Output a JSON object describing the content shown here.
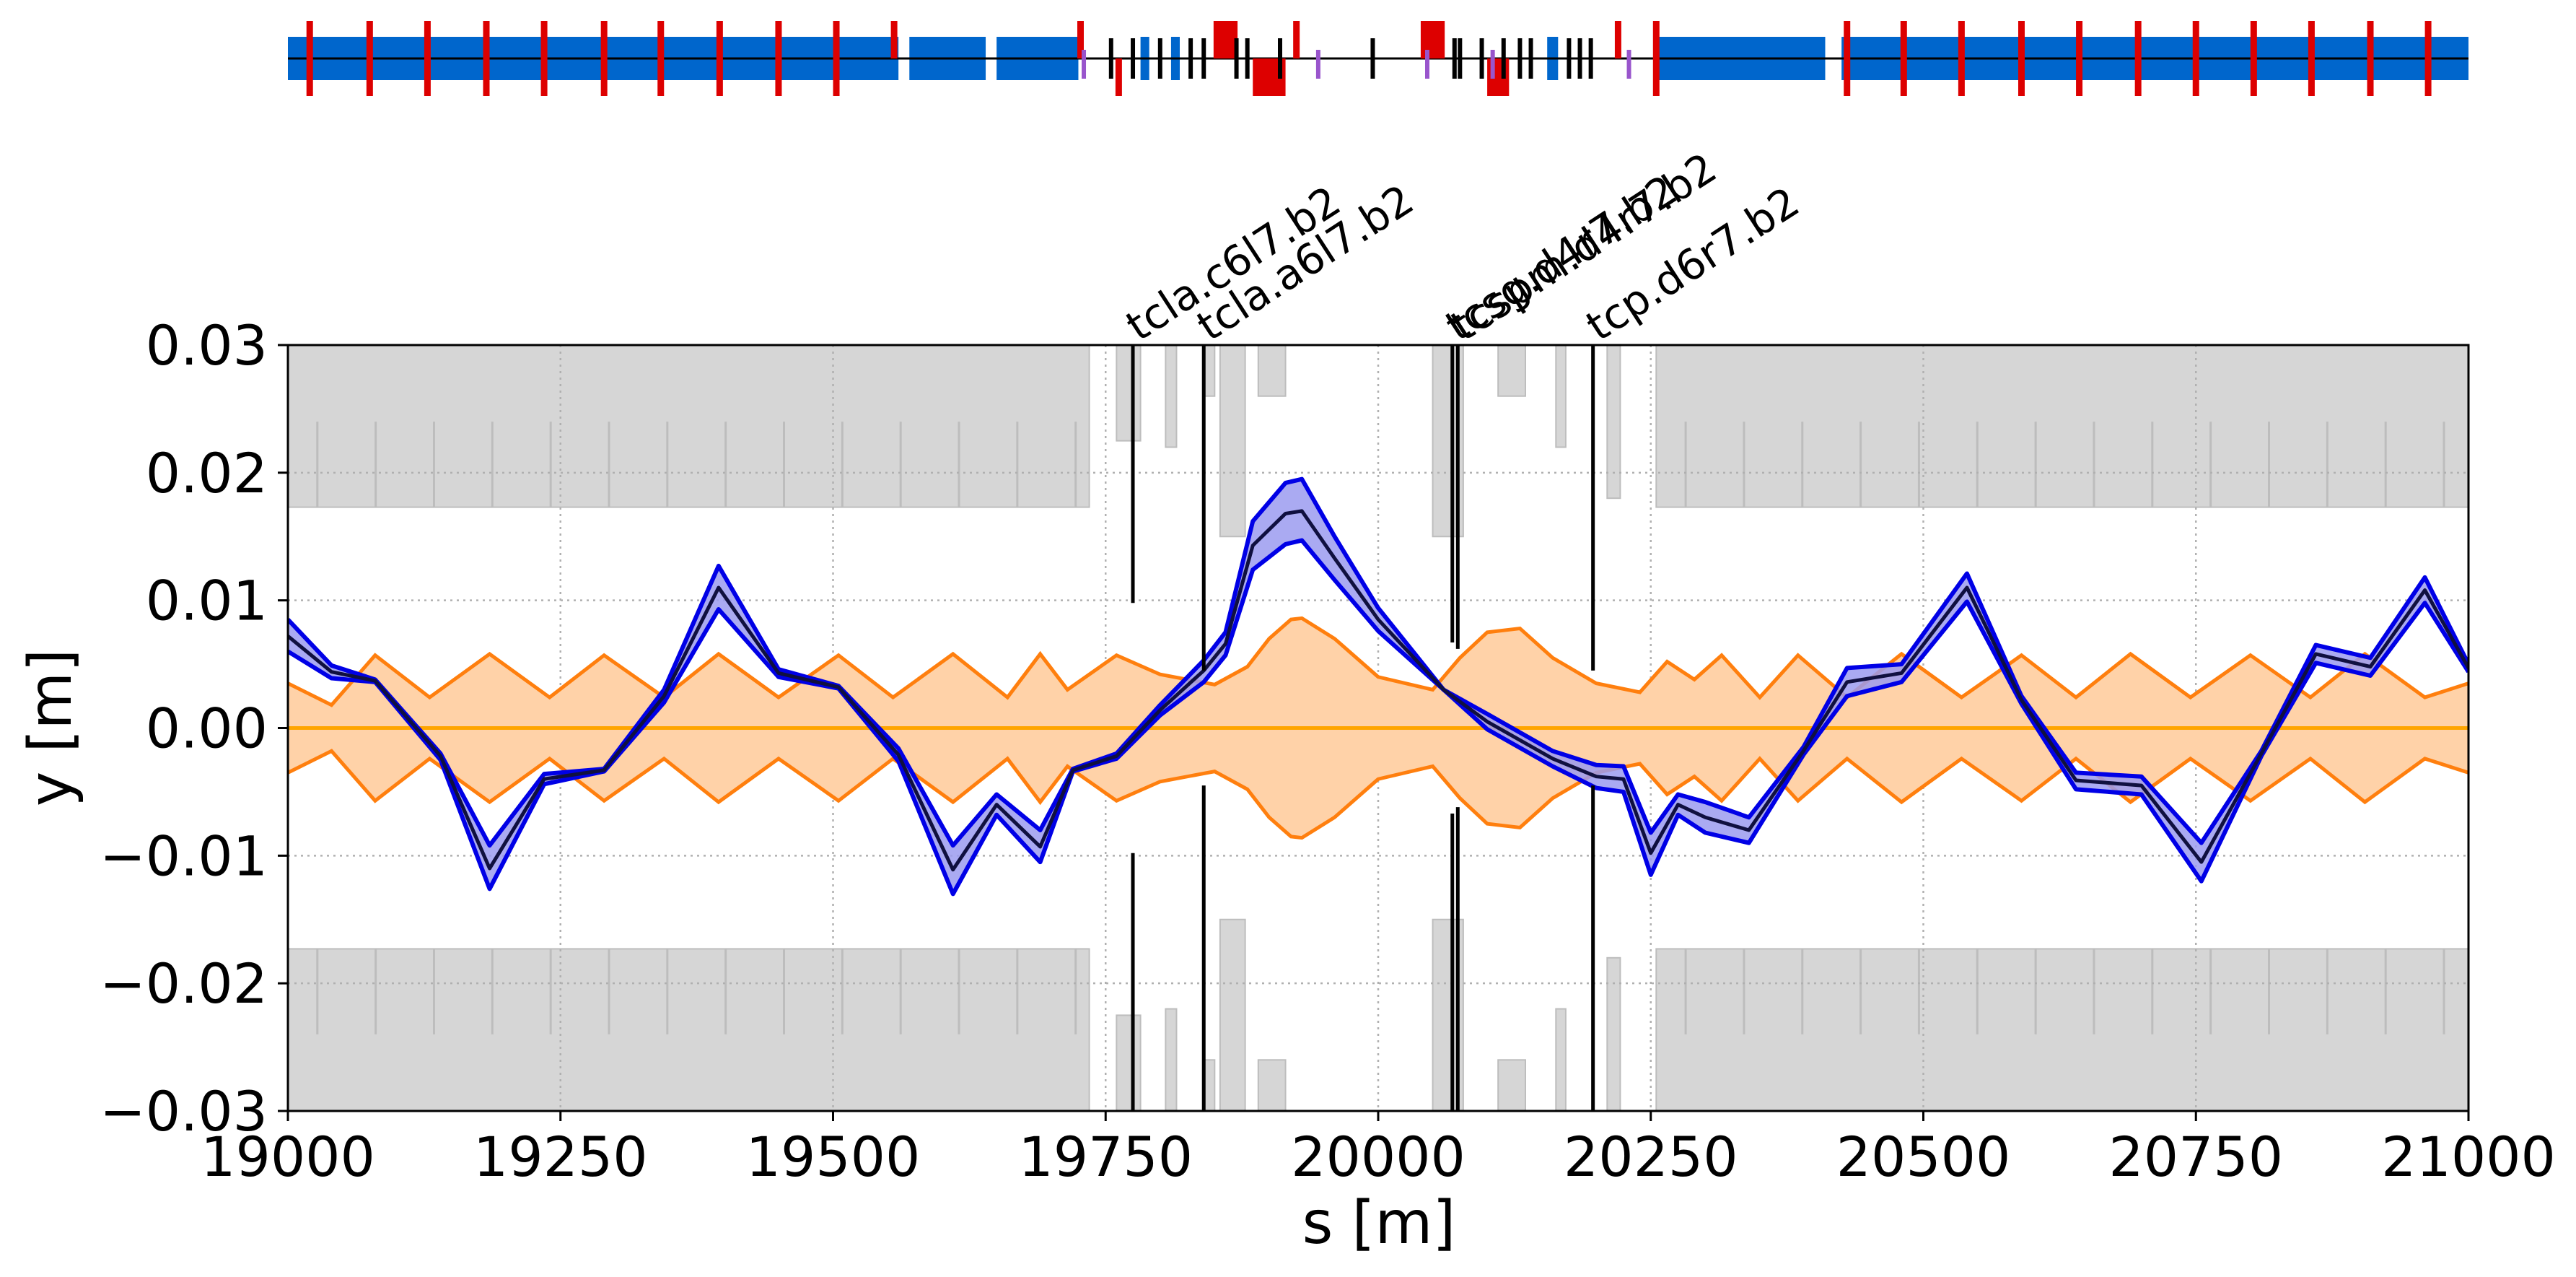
{
  "chart_data": {
    "type": "line",
    "xlabel": "s [m]",
    "ylabel": "y [m]",
    "xlim": [
      19000,
      21000
    ],
    "ylim": [
      -0.03,
      0.03
    ],
    "grid": true,
    "x_ticks": [
      {
        "value": 19000,
        "label": "19000"
      },
      {
        "value": 19250,
        "label": "19250"
      },
      {
        "value": 19500,
        "label": "19500"
      },
      {
        "value": 19750,
        "label": "19750"
      },
      {
        "value": 20000,
        "label": "20000"
      },
      {
        "value": 20250,
        "label": "20250"
      },
      {
        "value": 20500,
        "label": "20500"
      },
      {
        "value": 20750,
        "label": "20750"
      },
      {
        "value": 21000,
        "label": "21000"
      }
    ],
    "y_ticks": [
      {
        "value": 0.03,
        "label": "0.03"
      },
      {
        "value": 0.02,
        "label": "0.02"
      },
      {
        "value": 0.01,
        "label": "0.01"
      },
      {
        "value": 0.0,
        "label": "0.00"
      },
      {
        "value": -0.01,
        "label": "−0.01"
      },
      {
        "value": -0.02,
        "label": "−0.02"
      },
      {
        "value": -0.03,
        "label": "−0.03"
      }
    ],
    "colors": {
      "orbit": "#0000e6",
      "orbit_fill": "#9b9bf0",
      "beam_envelope": "#ff7f0e",
      "beam_fill": "#ffd2a8",
      "closed_orbit": "#ffa500",
      "aperture": "#d6d6d6",
      "aperture_edge": "#bdbdbd",
      "dipole": "#0066cc",
      "quadrupole": "#dd0000",
      "collimator": "#000000",
      "corrector": "#9955cc"
    },
    "series": [
      {
        "role": "orbit-upper",
        "x": [
          19000,
          19040,
          19080,
          19140,
          19185,
          19235,
          19290,
          19345,
          19395,
          19450,
          19505,
          19560,
          19610,
          19650,
          19690,
          19720,
          19760,
          19800,
          19840,
          19860,
          19885,
          19915,
          19930,
          19960,
          20000,
          20060,
          20100,
          20160,
          20200,
          20225,
          20250,
          20275,
          20300,
          20340,
          20390,
          20430,
          20480,
          20540,
          20590,
          20640,
          20700,
          20755,
          20810,
          20860,
          20910,
          20960,
          21000
        ],
        "y": [
          0.0085,
          0.0049,
          0.0038,
          -0.002,
          -0.0092,
          -0.0036,
          -0.0032,
          0.003,
          0.0127,
          0.0046,
          0.0033,
          -0.0016,
          -0.0092,
          -0.0052,
          -0.008,
          -0.0032,
          -0.002,
          0.0018,
          0.0053,
          0.0075,
          0.0162,
          0.0192,
          0.0195,
          0.015,
          0.0094,
          0.003,
          0.0011,
          -0.0018,
          -0.0029,
          -0.003,
          -0.0082,
          -0.0052,
          -0.0058,
          -0.007,
          -0.0015,
          0.0047,
          0.005,
          0.0121,
          0.0025,
          -0.0035,
          -0.0038,
          -0.009,
          -0.0018,
          0.0065,
          0.0055,
          0.0118,
          0.005
        ]
      },
      {
        "role": "orbit-center",
        "x": [
          19000,
          19040,
          19080,
          19140,
          19185,
          19235,
          19290,
          19345,
          19395,
          19450,
          19505,
          19560,
          19610,
          19650,
          19690,
          19720,
          19760,
          19800,
          19840,
          19860,
          19885,
          19915,
          19930,
          19960,
          20000,
          20060,
          20100,
          20160,
          20200,
          20225,
          20250,
          20275,
          20300,
          20340,
          20390,
          20430,
          20480,
          20540,
          20590,
          20640,
          20700,
          20755,
          20810,
          20860,
          20910,
          20960,
          21000
        ],
        "y": [
          0.0072,
          0.0044,
          0.0037,
          -0.0022,
          -0.011,
          -0.004,
          -0.0033,
          0.0025,
          0.011,
          0.0043,
          0.0032,
          -0.0021,
          -0.0111,
          -0.006,
          -0.0093,
          -0.0033,
          -0.0022,
          0.0014,
          0.0045,
          0.0066,
          0.0143,
          0.0168,
          0.017,
          0.0133,
          0.0085,
          0.003,
          0.0005,
          -0.0024,
          -0.0038,
          -0.004,
          -0.0098,
          -0.006,
          -0.007,
          -0.008,
          -0.0018,
          0.0036,
          0.0043,
          0.011,
          0.0022,
          -0.0041,
          -0.0045,
          -0.0105,
          -0.002,
          0.0058,
          0.0048,
          0.0108,
          0.0047
        ]
      },
      {
        "role": "orbit-lower",
        "x": [
          19000,
          19040,
          19080,
          19140,
          19185,
          19235,
          19290,
          19345,
          19395,
          19450,
          19505,
          19560,
          19610,
          19650,
          19690,
          19720,
          19760,
          19800,
          19840,
          19860,
          19885,
          19915,
          19930,
          19960,
          20000,
          20060,
          20100,
          20160,
          20200,
          20225,
          20250,
          20275,
          20300,
          20340,
          20390,
          20430,
          20480,
          20540,
          20590,
          20640,
          20700,
          20755,
          20810,
          20860,
          20910,
          20960,
          21000
        ],
        "y": [
          0.006,
          0.0039,
          0.0036,
          -0.0025,
          -0.0126,
          -0.0044,
          -0.0034,
          0.002,
          0.0093,
          0.004,
          0.0031,
          -0.0026,
          -0.013,
          -0.0068,
          -0.0105,
          -0.0034,
          -0.0024,
          0.001,
          0.0036,
          0.0057,
          0.0124,
          0.0144,
          0.0147,
          0.0116,
          0.0076,
          0.003,
          -0.0001,
          -0.003,
          -0.0047,
          -0.005,
          -0.0115,
          -0.0068,
          -0.0082,
          -0.009,
          -0.0021,
          0.0025,
          0.0036,
          0.0099,
          0.0019,
          -0.0048,
          -0.0052,
          -0.012,
          -0.0022,
          0.0051,
          0.0041,
          0.0098,
          0.0044
        ]
      },
      {
        "role": "beam-envelope-upper",
        "x": [
          19000,
          19040,
          19080,
          19130,
          19185,
          19240,
          19290,
          19345,
          19395,
          19450,
          19505,
          19555,
          19610,
          19660,
          19690,
          19715,
          19760,
          19800,
          19850,
          19880,
          19900,
          19920,
          19930,
          19960,
          20000,
          20050,
          20075,
          20100,
          20130,
          20160,
          20200,
          20240,
          20265,
          20290,
          20315,
          20350,
          20385,
          20430,
          20480,
          20535,
          20590,
          20640,
          20690,
          20745,
          20800,
          20855,
          20905,
          20960,
          21000
        ],
        "y": [
          0.0035,
          0.0018,
          0.0057,
          0.0024,
          0.0058,
          0.0024,
          0.0057,
          0.0024,
          0.0058,
          0.0024,
          0.0057,
          0.0024,
          0.0058,
          0.0024,
          0.0058,
          0.003,
          0.0057,
          0.0042,
          0.0034,
          0.0048,
          0.007,
          0.0085,
          0.0086,
          0.007,
          0.004,
          0.003,
          0.0055,
          0.0075,
          0.0078,
          0.0055,
          0.0035,
          0.0028,
          0.0052,
          0.0038,
          0.0057,
          0.0024,
          0.0057,
          0.0024,
          0.0058,
          0.0024,
          0.0057,
          0.0024,
          0.0058,
          0.0024,
          0.0057,
          0.0024,
          0.0058,
          0.0024,
          0.0035
        ]
      },
      {
        "role": "beam-envelope-lower",
        "x": [
          19000,
          19040,
          19080,
          19130,
          19185,
          19240,
          19290,
          19345,
          19395,
          19450,
          19505,
          19555,
          19610,
          19660,
          19690,
          19715,
          19760,
          19800,
          19850,
          19880,
          19900,
          19920,
          19930,
          19960,
          20000,
          20050,
          20075,
          20100,
          20130,
          20160,
          20200,
          20240,
          20265,
          20290,
          20315,
          20350,
          20385,
          20430,
          20480,
          20535,
          20590,
          20640,
          20690,
          20745,
          20800,
          20855,
          20905,
          20960,
          21000
        ],
        "y": [
          -0.0035,
          -0.0018,
          -0.0057,
          -0.0024,
          -0.0058,
          -0.0024,
          -0.0057,
          -0.0024,
          -0.0058,
          -0.0024,
          -0.0057,
          -0.0024,
          -0.0058,
          -0.0024,
          -0.0058,
          -0.003,
          -0.0057,
          -0.0042,
          -0.0034,
          -0.0048,
          -0.007,
          -0.0085,
          -0.0086,
          -0.007,
          -0.004,
          -0.003,
          -0.0055,
          -0.0075,
          -0.0078,
          -0.0055,
          -0.0035,
          -0.0028,
          -0.0052,
          -0.0038,
          -0.0057,
          -0.0024,
          -0.0057,
          -0.0024,
          -0.0058,
          -0.0024,
          -0.0057,
          -0.0024,
          -0.0058,
          -0.0024,
          -0.0057,
          -0.0024,
          -0.0058,
          -0.0024,
          -0.0035
        ]
      },
      {
        "role": "closed-orbit",
        "x": [
          19000,
          21000
        ],
        "y": [
          0.0,
          0.0
        ]
      }
    ],
    "aperture": {
      "continuous_regions": [
        {
          "s_start": 19000,
          "s_end": 19735,
          "inner": 0.0173
        },
        {
          "s_start": 20255,
          "s_end": 21000,
          "inner": 0.0173
        }
      ],
      "blocks": [
        {
          "s_start": 19760,
          "s_end": 19782,
          "inner": 0.0225
        },
        {
          "s_start": 19805,
          "s_end": 19815,
          "inner": 0.022
        },
        {
          "s_start": 19840,
          "s_end": 19850,
          "inner": 0.026
        },
        {
          "s_start": 19855,
          "s_end": 19878,
          "inner": 0.015
        },
        {
          "s_start": 19890,
          "s_end": 19915,
          "inner": 0.026
        },
        {
          "s_start": 20050,
          "s_end": 20078,
          "inner": 0.015
        },
        {
          "s_start": 20110,
          "s_end": 20135,
          "inner": 0.026
        },
        {
          "s_start": 20163,
          "s_end": 20172,
          "inner": 0.022
        },
        {
          "s_start": 20210,
          "s_end": 20222,
          "inner": 0.018
        }
      ]
    },
    "collimators": [
      {
        "name": "tcla.c6l7.b2",
        "s": 19775,
        "half_gap": 0.0098
      },
      {
        "name": "tcla.a6l7.b2",
        "s": 19840,
        "half_gap": 0.0045
      },
      {
        "name": "tcsg.d4r7.b2",
        "s": 20068,
        "half_gap": 0.0067
      },
      {
        "name": "tcspm.d4r7.b2",
        "s": 20073,
        "half_gap": 0.0062
      },
      {
        "name": "tcp.d6r7.b2",
        "s": 20197,
        "half_gap": 0.0045
      }
    ],
    "lattice": {
      "dipoles": [
        {
          "s_start": 19000,
          "s_end": 19560
        },
        {
          "s_start": 19570,
          "s_end": 19640
        },
        {
          "s_start": 19650,
          "s_end": 19725
        },
        {
          "s_start": 19782,
          "s_end": 19790
        },
        {
          "s_start": 19810,
          "s_end": 19818
        },
        {
          "s_start": 20155,
          "s_end": 20165
        },
        {
          "s_start": 20255,
          "s_end": 20410
        },
        {
          "s_start": 20425,
          "s_end": 21000
        }
      ],
      "quadrupoles": [
        {
          "s": 19020,
          "side": "both"
        },
        {
          "s": 19075,
          "side": "both"
        },
        {
          "s": 19128,
          "side": "both"
        },
        {
          "s": 19182,
          "side": "both"
        },
        {
          "s": 19235,
          "side": "both"
        },
        {
          "s": 19290,
          "side": "both"
        },
        {
          "s": 19342,
          "side": "both"
        },
        {
          "s": 19396,
          "side": "both"
        },
        {
          "s": 19450,
          "side": "both"
        },
        {
          "s": 19503,
          "side": "both"
        },
        {
          "s": 19556,
          "side": "top"
        },
        {
          "s": 19727,
          "side": "top"
        },
        {
          "s": 19762,
          "side": "bottom"
        },
        {
          "s": 19860,
          "side": "top",
          "width": 22
        },
        {
          "s": 19900,
          "side": "bottom",
          "width": 30
        },
        {
          "s": 19925,
          "side": "top"
        },
        {
          "s": 20050,
          "side": "top",
          "width": 22
        },
        {
          "s": 20110,
          "side": "bottom",
          "width": 20
        },
        {
          "s": 20220,
          "side": "top"
        },
        {
          "s": 20255,
          "side": "both"
        },
        {
          "s": 20430,
          "side": "both"
        },
        {
          "s": 20482,
          "side": "both"
        },
        {
          "s": 20535,
          "side": "both"
        },
        {
          "s": 20590,
          "side": "both"
        },
        {
          "s": 20643,
          "side": "both"
        },
        {
          "s": 20697,
          "side": "both"
        },
        {
          "s": 20750,
          "side": "both"
        },
        {
          "s": 20803,
          "side": "both"
        },
        {
          "s": 20856,
          "side": "both"
        },
        {
          "s": 20910,
          "side": "both"
        },
        {
          "s": 20963,
          "side": "both"
        }
      ],
      "collimator_ticks": [
        19755,
        19775,
        19800,
        19828,
        19840,
        19870,
        19880,
        19910,
        19995,
        20070,
        20075,
        20095,
        20115,
        20130,
        20140,
        20175,
        20185,
        20195
      ],
      "corrector_ticks": [
        19730,
        19945,
        20045,
        20105,
        20230
      ]
    }
  }
}
